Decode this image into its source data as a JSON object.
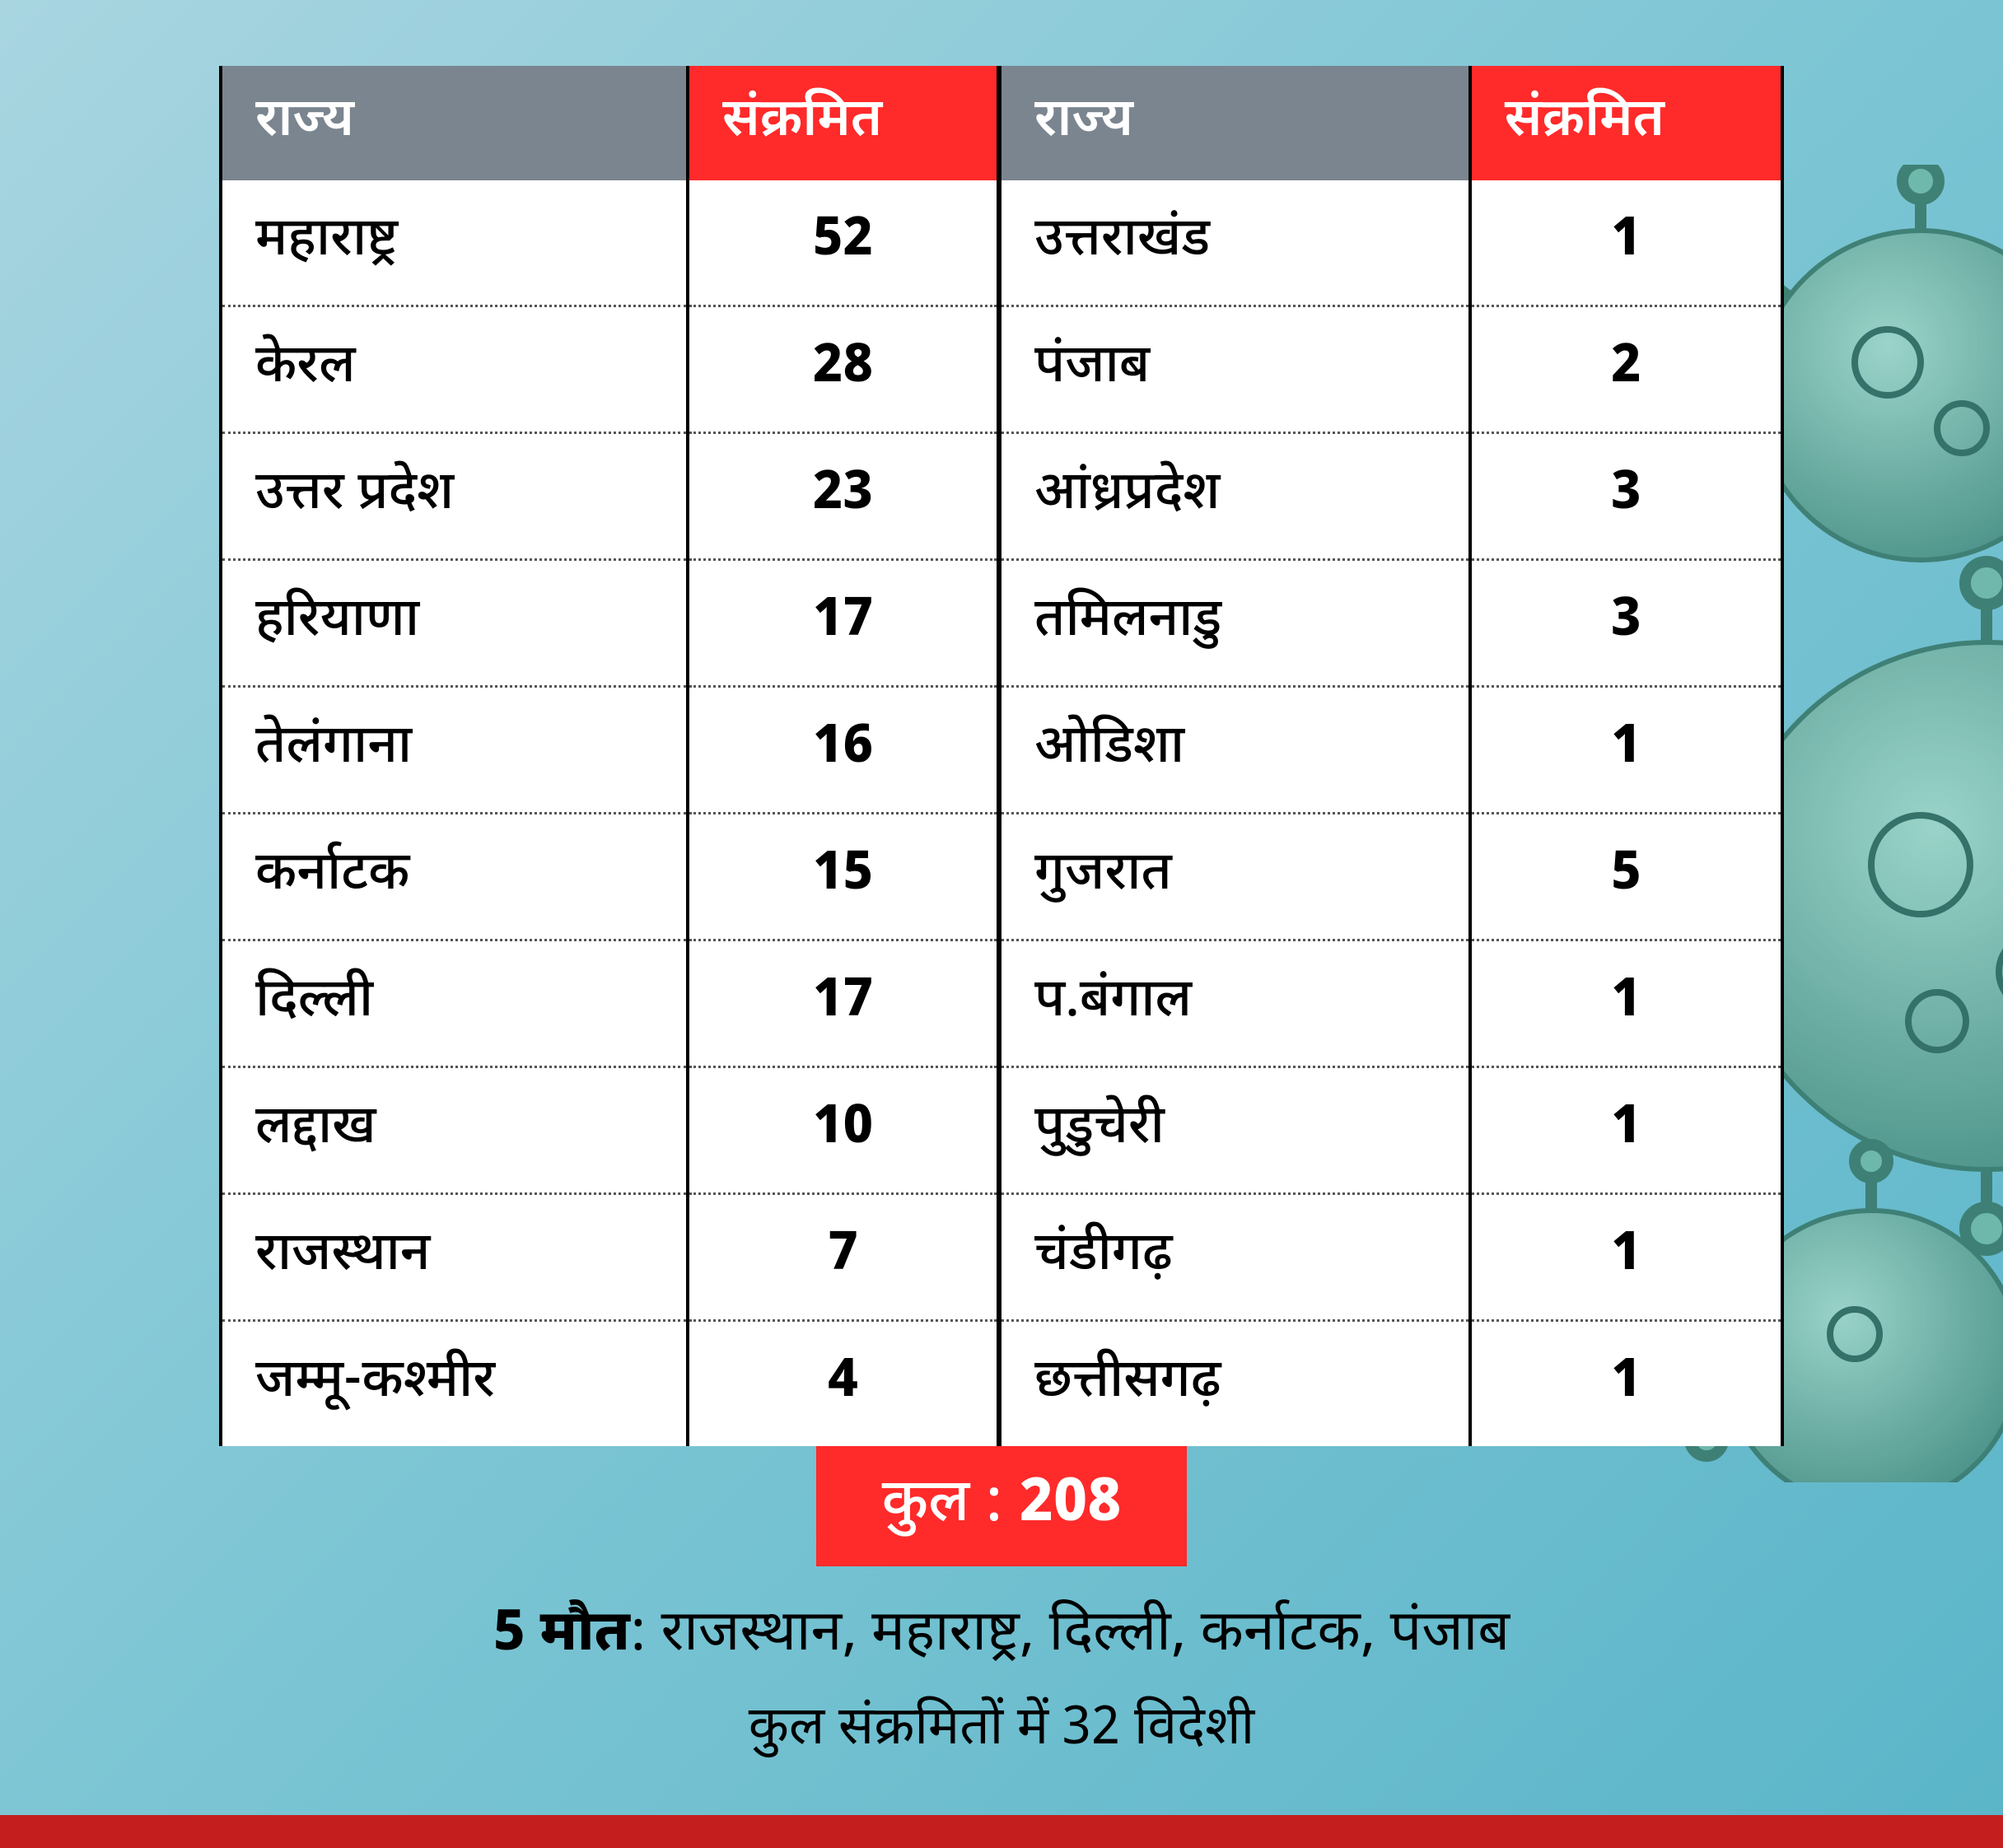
{
  "colors": {
    "bg_gradient_from": "#a8d5e0",
    "bg_gradient_to": "#5ab5c8",
    "header_state_bg": "#7a858f",
    "header_count_bg": "#ff2a2a",
    "header_text": "#ffffff",
    "cell_bg": "#ffffff",
    "cell_text": "#000000",
    "dotted_border": "#555555",
    "solid_border": "#000000",
    "total_bg": "#ff2a2a",
    "total_text": "#ffffff",
    "bottom_bar": "#c41e1e",
    "virus_fill": "#6fb8a8",
    "virus_stroke": "#3a7a6d"
  },
  "typography": {
    "header_fontsize": 64,
    "cell_fontsize": 64,
    "total_fontsize": 72,
    "footer1_fontsize": 68,
    "footer2_fontsize": 64,
    "count_weight": 800,
    "state_weight": 500
  },
  "table": {
    "type": "table",
    "header_state": "राज्य",
    "header_count": "संक्रमित",
    "left_rows": [
      {
        "state": "महाराष्ट्र",
        "count": "52"
      },
      {
        "state": "केरल",
        "count": "28"
      },
      {
        "state": "उत्तर प्रदेश",
        "count": "23"
      },
      {
        "state": "हरियाणा",
        "count": "17"
      },
      {
        "state": "तेलंगाना",
        "count": "16"
      },
      {
        "state": "कर्नाटक",
        "count": "15"
      },
      {
        "state": "दिल्ली",
        "count": "17"
      },
      {
        "state": "लद्दाख",
        "count": "10"
      },
      {
        "state": "राजस्थान",
        "count": "7"
      },
      {
        "state": "जम्मू-कश्मीर",
        "count": "4"
      }
    ],
    "right_rows": [
      {
        "state": "उत्तराखंड",
        "count": "1"
      },
      {
        "state": "पंजाब",
        "count": "2"
      },
      {
        "state": "आंध्रप्रदेश",
        "count": "3"
      },
      {
        "state": "तमिलनाडु",
        "count": "3"
      },
      {
        "state": "ओडिशा",
        "count": "1"
      },
      {
        "state": "गुजरात",
        "count": "5"
      },
      {
        "state": "प.बंगाल",
        "count": "1"
      },
      {
        "state": "पुडुचेरी",
        "count": "1"
      },
      {
        "state": "चंडीगढ़",
        "count": "1"
      },
      {
        "state": "छत्तीसगढ़",
        "count": "1"
      }
    ]
  },
  "total": {
    "label": "कुल :",
    "value": "208"
  },
  "footer": {
    "deaths_bold": "5 मौत",
    "deaths_rest": ": राजस्थान, महाराष्ट्र, दिल्ली, कर्नाटक, पंजाब",
    "line2": "कुल संक्रमितों में 32 विदेशी"
  }
}
